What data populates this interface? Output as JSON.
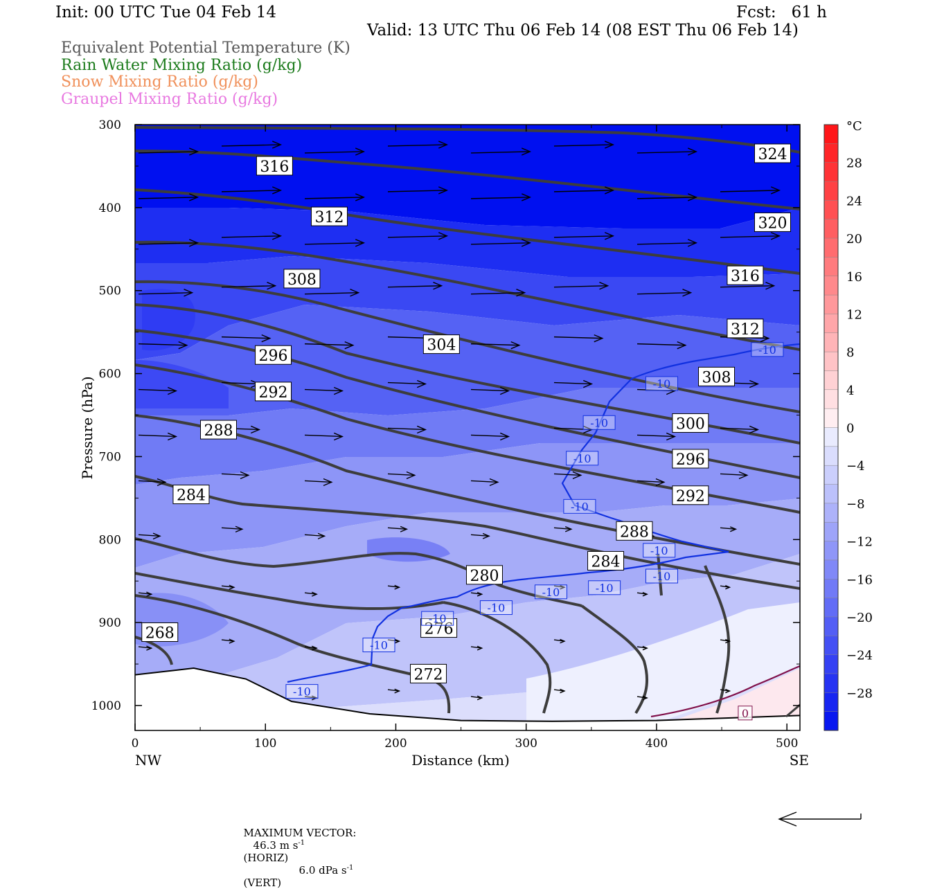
{
  "header": {
    "init": "Init: 00 UTC Tue 04 Feb 14",
    "fcst": "Fcst:   61 h",
    "valid": "Valid: 13 UTC Thu 06 Feb 14 (08 EST Thu 06 Feb 14)"
  },
  "legend": [
    {
      "label": "Equivalent Potential Temperature (K)",
      "color": "#555555"
    },
    {
      "label": "Rain Water Mixing Ratio (g/kg)",
      "color": "#1a7a1a"
    },
    {
      "label": "Snow Mixing Ratio (g/kg)",
      "color": "#f0905a"
    },
    {
      "label": "Graupel Mixing Ratio (g/kg)",
      "color": "#e878e0"
    }
  ],
  "footer": {
    "max_vector_label": "MAXIMUM VECTOR:",
    "horiz_value": "46.3 m s",
    "horiz_unit": "(HORIZ)",
    "vert_value": "6.0 dPa s",
    "vert_unit": "(VERT)",
    "exp": "-1"
  },
  "chart_data": {
    "type": "cross-section",
    "xlabel": "Distance (km)",
    "ylabel": "Pressure (hPa)",
    "xlim": [
      0,
      510
    ],
    "ylim": [
      1030,
      300
    ],
    "x_ticks": [
      0,
      100,
      200,
      300,
      400,
      500
    ],
    "y_ticks": [
      300,
      400,
      500,
      600,
      700,
      800,
      900,
      1000
    ],
    "x_end_labels": {
      "left": "NW",
      "right": "SE"
    },
    "colorbar": {
      "unit": "°C",
      "levels": [
        28,
        24,
        20,
        16,
        12,
        8,
        4,
        0,
        -4,
        -8,
        -12,
        -16,
        -20,
        -24,
        -28
      ],
      "range": [
        -32,
        32
      ]
    },
    "theta_e_contour_labels": [
      {
        "value": "316",
        "x": 107,
        "p": 350
      },
      {
        "value": "312",
        "x": 149,
        "p": 411
      },
      {
        "value": "308",
        "x": 128,
        "p": 486
      },
      {
        "value": "304",
        "x": 235,
        "p": 565
      },
      {
        "value": "296",
        "x": 106,
        "p": 578
      },
      {
        "value": "292",
        "x": 106,
        "p": 622
      },
      {
        "value": "288",
        "x": 64,
        "p": 668
      },
      {
        "value": "284",
        "x": 43,
        "p": 746
      },
      {
        "value": "280",
        "x": 268,
        "p": 843
      },
      {
        "value": "276",
        "x": 233,
        "p": 907
      },
      {
        "value": "272",
        "x": 225,
        "p": 962
      },
      {
        "value": "268",
        "x": 19,
        "p": 912
      },
      {
        "value": "324",
        "x": 489,
        "p": 335
      },
      {
        "value": "320",
        "x": 489,
        "p": 418
      },
      {
        "value": "316",
        "x": 468,
        "p": 482
      },
      {
        "value": "312",
        "x": 468,
        "p": 546
      },
      {
        "value": "308",
        "x": 446,
        "p": 604
      },
      {
        "value": "300",
        "x": 426,
        "p": 660
      },
      {
        "value": "296",
        "x": 426,
        "p": 703
      },
      {
        "value": "292",
        "x": 426,
        "p": 747
      },
      {
        "value": "288",
        "x": 383,
        "p": 790
      },
      {
        "value": "284",
        "x": 361,
        "p": 826
      }
    ],
    "isotherm_labels": [
      {
        "value": "-10",
        "x": 485,
        "p": 571
      },
      {
        "value": "-10",
        "x": 404,
        "p": 612
      },
      {
        "value": "-10",
        "x": 356,
        "p": 659
      },
      {
        "value": "-10",
        "x": 343,
        "p": 702
      },
      {
        "value": "-10",
        "x": 341,
        "p": 760
      },
      {
        "value": "-10",
        "x": 402,
        "p": 813
      },
      {
        "value": "-10",
        "x": 404,
        "p": 844
      },
      {
        "value": "-10",
        "x": 360,
        "p": 858
      },
      {
        "value": "-10",
        "x": 319,
        "p": 863
      },
      {
        "value": "-10",
        "x": 277,
        "p": 882
      },
      {
        "value": "-10",
        "x": 232,
        "p": 895
      },
      {
        "value": "-10",
        "x": 187,
        "p": 927
      },
      {
        "value": "-10",
        "x": 128,
        "p": 983
      },
      {
        "value": "0",
        "x": 468,
        "p": 1009
      }
    ]
  }
}
